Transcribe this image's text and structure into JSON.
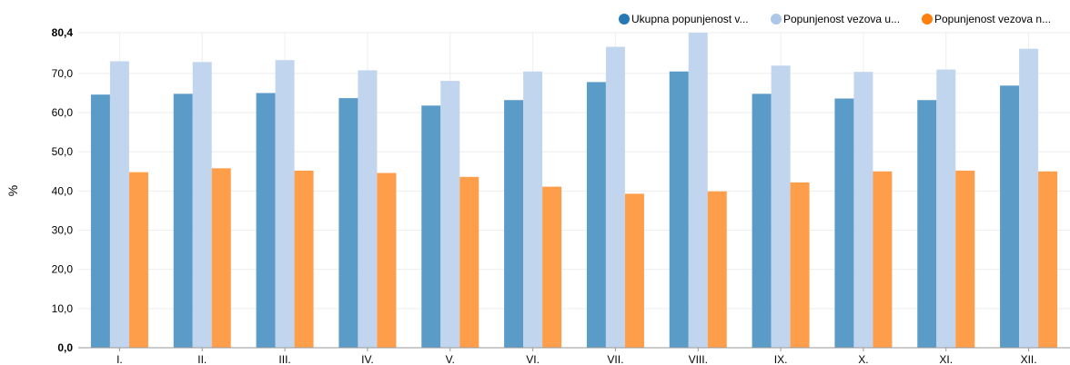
{
  "chart_data": {
    "type": "bar",
    "ylabel": "%",
    "ylim": [
      0,
      80.4
    ],
    "yticks": [
      "0,0",
      "10,0",
      "20,0",
      "30,0",
      "40,0",
      "50,0",
      "60,0",
      "70,0",
      "80,4"
    ],
    "categories": [
      "I.",
      "II.",
      "III.",
      "IV.",
      "V.",
      "VI.",
      "VII.",
      "VIII.",
      "IX.",
      "X.",
      "XI.",
      "XII."
    ],
    "legend_position": "top-right",
    "grid": true,
    "series": [
      {
        "name": "Ukupna popunjenost v...",
        "color": "#5b9bc8",
        "values": [
          64.6,
          64.8,
          65.0,
          63.7,
          61.8,
          63.2,
          67.8,
          70.5,
          64.8,
          63.6,
          63.2,
          66.9
        ]
      },
      {
        "name": "Popunjenost vezova u...",
        "color": "#c2d5ee",
        "values": [
          73.1,
          72.9,
          73.4,
          70.8,
          68.1,
          70.5,
          76.8,
          80.4,
          72.0,
          70.4,
          71.0,
          76.3
        ]
      },
      {
        "name": "Popunjenost vezova n...",
        "color": "#ff9e4a",
        "values": [
          44.8,
          45.8,
          45.2,
          44.6,
          43.6,
          41.1,
          39.3,
          39.9,
          42.2,
          45.0,
          45.2,
          45.0
        ]
      }
    ],
    "legend_colors": [
      "#2878b4",
      "#aec7e8",
      "#ff7f0e"
    ]
  }
}
